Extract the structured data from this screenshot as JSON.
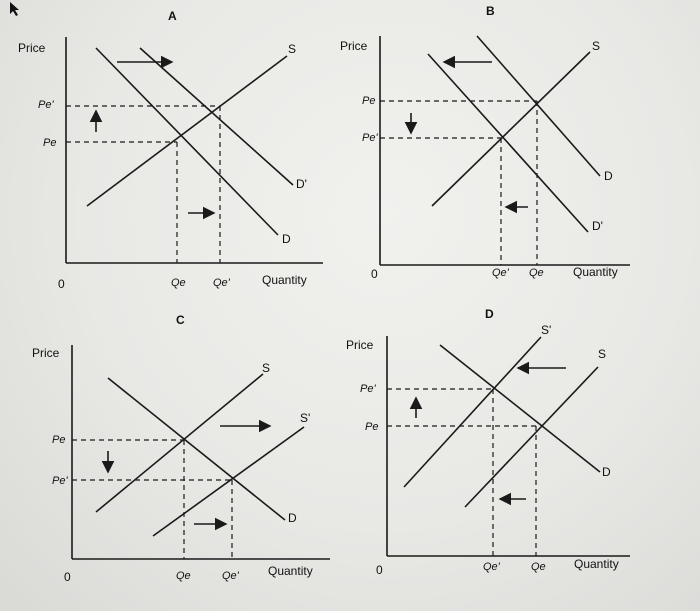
{
  "panels": {
    "A": {
      "title": "A",
      "price_label": "Price",
      "quantity_label": "Quantity",
      "origin": "0",
      "p_labels": [
        "Pe'",
        "Pe"
      ],
      "q_labels": [
        "Qe",
        "Qe'"
      ],
      "curve_labels": {
        "s": "S",
        "d1": "D'",
        "d0": "D"
      }
    },
    "B": {
      "title": "B",
      "price_label": "Price",
      "quantity_label": "Quantity",
      "origin": "0",
      "p_labels": [
        "Pe",
        "Pe'"
      ],
      "q_labels": [
        "Qe'",
        "Qe"
      ],
      "curve_labels": {
        "s": "S",
        "d0": "D",
        "d1": "D'"
      }
    },
    "C": {
      "title": "C",
      "price_label": "Price",
      "quantity_label": "Quantity",
      "origin": "0",
      "p_labels": [
        "Pe",
        "Pe'"
      ],
      "q_labels": [
        "Qe",
        "Qe'"
      ],
      "curve_labels": {
        "s0": "S",
        "s1": "S'",
        "d": "D"
      }
    },
    "D": {
      "title": "D",
      "price_label": "Price",
      "quantity_label": "Quantity",
      "origin": "0",
      "p_labels": [
        "Pe'",
        "Pe"
      ],
      "q_labels": [
        "Qe'",
        "Qe"
      ],
      "curve_labels": {
        "s1": "S'",
        "s0": "S",
        "d": "D"
      }
    }
  },
  "colors": {
    "ink": "#1a1a1a",
    "paper": "#ecece9"
  },
  "icons": {
    "cursor": "mouse-pointer-icon"
  }
}
